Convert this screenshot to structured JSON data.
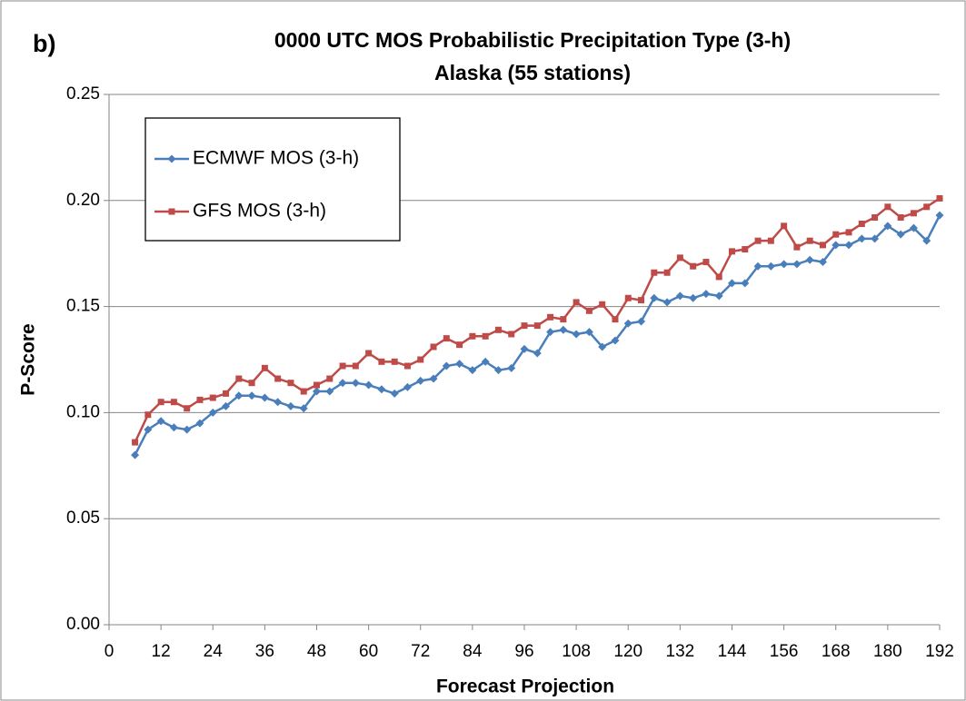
{
  "chart_data": {
    "type": "line",
    "panel_label": "b)",
    "title": "0000 UTC MOS Probabilistic Precipitation Type (3-h)",
    "subtitle": "Alaska (55 stations)",
    "x_label": "Forecast Projection",
    "y_label": "P-Score",
    "x": [
      6,
      9,
      12,
      15,
      18,
      21,
      24,
      27,
      30,
      33,
      36,
      39,
      42,
      45,
      48,
      51,
      54,
      57,
      60,
      63,
      66,
      69,
      72,
      75,
      78,
      81,
      84,
      87,
      90,
      93,
      96,
      99,
      102,
      105,
      108,
      111,
      114,
      117,
      120,
      123,
      126,
      129,
      132,
      135,
      138,
      141,
      144,
      147,
      150,
      153,
      156,
      159,
      162,
      165,
      168,
      171,
      174,
      177,
      180,
      183,
      186,
      189,
      192
    ],
    "series": [
      {
        "name": "ECMWF MOS (3-h)",
        "color": "#4a7ebb",
        "marker": "diamond",
        "values": [
          0.08,
          0.092,
          0.096,
          0.093,
          0.092,
          0.095,
          0.1,
          0.103,
          0.108,
          0.108,
          0.107,
          0.105,
          0.103,
          0.102,
          0.11,
          0.11,
          0.114,
          0.114,
          0.113,
          0.111,
          0.109,
          0.112,
          0.115,
          0.116,
          0.122,
          0.123,
          0.12,
          0.124,
          0.12,
          0.121,
          0.13,
          0.128,
          0.138,
          0.139,
          0.137,
          0.138,
          0.131,
          0.134,
          0.142,
          0.143,
          0.154,
          0.152,
          0.155,
          0.154,
          0.156,
          0.155,
          0.161,
          0.161,
          0.169,
          0.169,
          0.17,
          0.17,
          0.172,
          0.171,
          0.179,
          0.179,
          0.182,
          0.182,
          0.188,
          0.184,
          0.187,
          0.181,
          0.193
        ]
      },
      {
        "name": "GFS MOS (3-h)",
        "color": "#be4b48",
        "marker": "square",
        "values": [
          0.086,
          0.099,
          0.105,
          0.105,
          0.102,
          0.106,
          0.107,
          0.109,
          0.116,
          0.114,
          0.121,
          0.116,
          0.114,
          0.11,
          0.113,
          0.116,
          0.122,
          0.122,
          0.128,
          0.124,
          0.124,
          0.122,
          0.125,
          0.131,
          0.135,
          0.132,
          0.136,
          0.136,
          0.139,
          0.137,
          0.141,
          0.141,
          0.145,
          0.144,
          0.152,
          0.148,
          0.151,
          0.144,
          0.154,
          0.153,
          0.166,
          0.166,
          0.173,
          0.169,
          0.171,
          0.164,
          0.176,
          0.177,
          0.181,
          0.181,
          0.188,
          0.178,
          0.181,
          0.179,
          0.184,
          0.185,
          0.189,
          0.192,
          0.197,
          0.192,
          0.194,
          0.197,
          0.201
        ]
      }
    ],
    "xlim": [
      0,
      192
    ],
    "xticks": [
      0,
      12,
      24,
      36,
      48,
      60,
      72,
      84,
      96,
      108,
      120,
      132,
      144,
      156,
      168,
      180,
      192
    ],
    "ylim": [
      0,
      0.25
    ],
    "yticks": [
      {
        "value": 0,
        "label": "0.00"
      },
      {
        "value": 0.05,
        "label": "0.05"
      },
      {
        "value": 0.1,
        "label": "0.10"
      },
      {
        "value": 0.15,
        "label": "0.15"
      },
      {
        "value": 0.2,
        "label": "0.20"
      },
      {
        "value": 0.25,
        "label": "0.25"
      }
    ],
    "grid": true,
    "legend": "upper left"
  }
}
